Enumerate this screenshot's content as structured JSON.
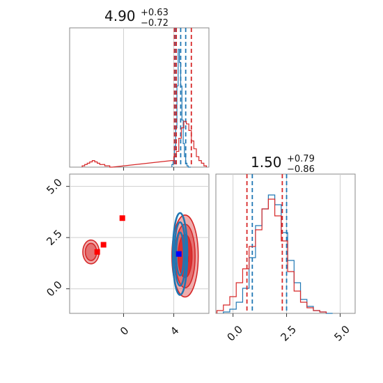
{
  "chart_data": [
    {
      "type": "histogram",
      "panel": "top-left marginal (parameter 1)",
      "title": {
        "value": "4.90",
        "upper": "+0.63",
        "lower": "−0.72"
      },
      "xlim": [
        -4.3,
        6.8
      ],
      "grid": true,
      "series": [
        {
          "color": "#1f77b4",
          "x": [
            3.9,
            4.0,
            4.1,
            4.2,
            4.3,
            4.4,
            4.5,
            4.6,
            4.7,
            4.8,
            4.9,
            5.0,
            5.1,
            5.2,
            5.3
          ],
          "values": [
            0.02,
            0.05,
            0.16,
            0.3,
            0.62,
            0.9,
            0.8,
            0.62,
            0.36,
            0.18,
            0.08,
            0.03,
            0.01,
            0,
            0
          ],
          "quantile_lines": [
            4.15,
            4.55,
            4.95
          ]
        },
        {
          "color": "#d62728",
          "x": [
            -3.2,
            -3.0,
            -2.8,
            -2.6,
            -2.4,
            -2.2,
            -2.0,
            -1.8,
            -1.6,
            -1.4,
            -1.2,
            -1.0,
            3.9,
            4.1,
            4.3,
            4.5,
            4.7,
            4.9,
            5.1,
            5.3,
            5.5,
            5.7,
            5.9,
            6.1,
            6.3,
            6.5
          ],
          "values": [
            0.01,
            0.02,
            0.03,
            0.04,
            0.05,
            0.04,
            0.03,
            0.02,
            0.02,
            0.01,
            0.01,
            0,
            0.05,
            0.08,
            0.12,
            0.22,
            0.3,
            0.35,
            0.33,
            0.28,
            0.2,
            0.14,
            0.08,
            0.05,
            0.03,
            0.01
          ],
          "quantile_lines": [
            4.05,
            4.2,
            5.4
          ]
        }
      ]
    },
    {
      "type": "histogram",
      "panel": "bottom-right marginal (parameter 2)",
      "title": {
        "value": "1.50",
        "upper": "+0.79",
        "lower": "−0.86"
      },
      "xlim": [
        -0.8,
        5.7
      ],
      "xticks": [
        "0.0",
        "2.5",
        "5.0"
      ],
      "grid": true,
      "series": [
        {
          "color": "#1f77b4",
          "x": [
            -0.3,
            0.0,
            0.3,
            0.6,
            0.9,
            1.2,
            1.5,
            1.8,
            2.1,
            2.4,
            2.7,
            3.0,
            3.3,
            3.6,
            3.9,
            4.2,
            4.5
          ],
          "values": [
            0.01,
            0.03,
            0.08,
            0.18,
            0.4,
            0.63,
            0.75,
            0.85,
            0.78,
            0.58,
            0.38,
            0.22,
            0.1,
            0.05,
            0.02,
            0.01,
            0
          ],
          "quantile_lines": [
            0.9,
            2.5
          ]
        },
        {
          "color": "#d62728",
          "x": [
            -0.6,
            -0.3,
            0.0,
            0.3,
            0.6,
            0.9,
            1.2,
            1.5,
            1.8,
            2.1,
            2.4,
            2.7,
            3.0,
            3.3,
            3.6,
            3.9,
            4.2
          ],
          "values": [
            0.02,
            0.06,
            0.12,
            0.22,
            0.32,
            0.48,
            0.6,
            0.75,
            0.82,
            0.7,
            0.52,
            0.3,
            0.16,
            0.08,
            0.04,
            0.02,
            0.01
          ],
          "quantile_lines": [
            0.65,
            2.3
          ]
        }
      ]
    },
    {
      "type": "contour",
      "panel": "bottom-left joint (parameter 1 vs parameter 2)",
      "xlim": [
        -4.3,
        6.8
      ],
      "ylim": [
        -1.2,
        5.6
      ],
      "xticks": [
        "0",
        "4"
      ],
      "yticks": [
        "0.0",
        "2.5",
        "5.0"
      ],
      "grid": true,
      "series": [
        {
          "color": "#d62728",
          "modes": [
            {
              "center": [
                -2.6,
                1.8
              ],
              "levels_sigma": [
                [
                  0.45,
                  0.42
                ],
                [
                  0.65,
                  0.58
                ]
              ]
            },
            {
              "center": [
                4.9,
                1.6
              ],
              "levels_sigma": [
                [
                  0.55,
                  1.05
                ],
                [
                  0.8,
                  1.55
                ],
                [
                  1.05,
                  2.0
                ]
              ]
            }
          ],
          "markers": [
            [
              -2.1,
              1.8
            ],
            [
              -1.6,
              2.15
            ],
            [
              -0.1,
              3.45
            ],
            [
              4.95,
              1.45
            ]
          ]
        },
        {
          "color": "#1f77b4",
          "modes": [
            {
              "center": [
                4.5,
                1.7
              ],
              "levels_sigma": [
                [
                  0.3,
                  1.05
                ],
                [
                  0.45,
                  1.55
                ],
                [
                  0.58,
                  2.0
                ]
              ]
            }
          ],
          "markers": [
            [
              4.4,
              1.7
            ]
          ]
        }
      ]
    }
  ]
}
